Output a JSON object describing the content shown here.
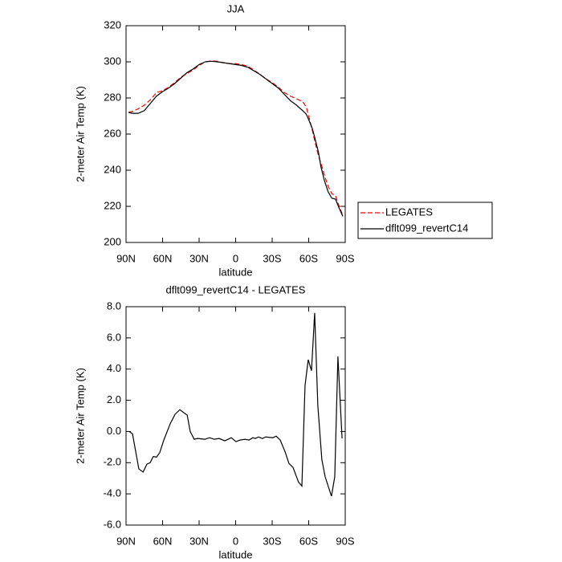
{
  "chart_data": [
    {
      "type": "line",
      "title": "JJA",
      "xlabel": "latitude",
      "ylabel": "2-meter Air Temp (K)",
      "x": [
        88,
        85,
        80,
        75,
        70,
        65,
        60,
        55,
        50,
        45,
        40,
        35,
        30,
        25,
        20,
        15,
        10,
        5,
        0,
        -5,
        -10,
        -15,
        -20,
        -25,
        -30,
        -35,
        -40,
        -45,
        -50,
        -55,
        -58,
        -60,
        -63,
        -65,
        -68,
        -70,
        -73,
        -76,
        -79,
        -82,
        -85,
        -88
      ],
      "series": [
        {
          "name": "LEGATES",
          "color": "#ff0000",
          "style": "dashed",
          "values": [
            272,
            272.5,
            274,
            276,
            279,
            283,
            284,
            286,
            288.5,
            291.5,
            293.5,
            295.5,
            298,
            300,
            300.5,
            300.3,
            299.5,
            299,
            299,
            298.5,
            297.5,
            295.5,
            293,
            290.5,
            288.5,
            286,
            283,
            281,
            279.5,
            278,
            275,
            270,
            262,
            256,
            248,
            244,
            237,
            231,
            227,
            226,
            220,
            215
          ]
        },
        {
          "name": "dflt099_revertC14",
          "color": "#000000",
          "style": "solid",
          "values": [
            272,
            271.5,
            271.5,
            273,
            277,
            281,
            283.5,
            285.5,
            288,
            291,
            294,
            296,
            298.5,
            300,
            300.3,
            300,
            299.5,
            299,
            298.5,
            298,
            297,
            295,
            293,
            290.5,
            288,
            285.5,
            282,
            278.5,
            276,
            273,
            271,
            268,
            263,
            258,
            250,
            242,
            234,
            228,
            224.5,
            224,
            219,
            214.5
          ]
        }
      ],
      "xlim": [
        90,
        -90
      ],
      "xticks": [
        {
          "value": 90,
          "label": "90N"
        },
        {
          "value": 60,
          "label": "60N"
        },
        {
          "value": 30,
          "label": "30N"
        },
        0,
        {
          "value": -30,
          "label": "30S"
        },
        {
          "value": -60,
          "label": "60S"
        },
        {
          "value": -90,
          "label": "90S"
        }
      ],
      "ylim": [
        200,
        320
      ],
      "yticks": [
        200,
        220,
        240,
        260,
        280,
        300,
        320
      ],
      "legend": "right"
    },
    {
      "type": "line",
      "title": "dflt099_revertC14 - LEGATES",
      "xlabel": "latitude",
      "ylabel": "2-meter Air Temp (K)",
      "x": [
        87.4,
        84.7,
        79.5,
        76,
        72.9,
        70.2,
        67.6,
        65,
        62.3,
        59,
        53.7,
        49.8,
        45.8,
        42.5,
        39.8,
        37.3,
        34,
        31.3,
        25.4,
        21.4,
        17.5,
        13.5,
        8.9,
        3.6,
        -0.3,
        -3.6,
        -7.6,
        -10.9,
        -14.2,
        -16.1,
        -18.8,
        -22,
        -24.7,
        -30.6,
        -33.3,
        -36.6,
        -40.6,
        -43.8,
        -47.1,
        -51.7,
        -54.4,
        -57,
        -59.6,
        -62.3,
        -64.9,
        -67.5,
        -70.8,
        -73.5,
        -78.7,
        -81.4,
        -84,
        -87.4
      ],
      "values": [
        0.0,
        -0.15,
        -2.4,
        -2.6,
        -2.1,
        -2.0,
        -1.6,
        -1.65,
        -1.35,
        -0.55,
        0.5,
        1.1,
        1.4,
        1.2,
        1.05,
        0.0,
        -0.5,
        -0.45,
        -0.5,
        -0.4,
        -0.5,
        -0.45,
        -0.6,
        -0.4,
        -0.65,
        -0.55,
        -0.5,
        -0.55,
        -0.4,
        -0.45,
        -0.35,
        -0.45,
        -0.35,
        -0.4,
        -0.3,
        -0.55,
        -1.3,
        -2.05,
        -2.3,
        -3.25,
        -3.5,
        2.95,
        4.6,
        3.9,
        7.6,
        1.65,
        -1.8,
        -2.9,
        -4.15,
        -2.9,
        4.8,
        -0.45
      ],
      "color": "#000000",
      "xlim": [
        90,
        -90
      ],
      "xticks": [
        {
          "value": 90,
          "label": "90N"
        },
        {
          "value": 60,
          "label": "60N"
        },
        {
          "value": 30,
          "label": "30N"
        },
        0,
        {
          "value": -30,
          "label": "30S"
        },
        {
          "value": -60,
          "label": "60S"
        },
        {
          "value": -90,
          "label": "90S"
        }
      ],
      "ylim": [
        -6,
        8
      ],
      "yticks": [
        {
          "value": -6,
          "label": "-6.0"
        },
        {
          "value": -4,
          "label": "-4.0"
        },
        {
          "value": -2,
          "label": "-2.0"
        },
        {
          "value": 0,
          "label": "0.0"
        },
        {
          "value": 2,
          "label": "2.0"
        },
        {
          "value": 4,
          "label": "4.0"
        },
        {
          "value": 6,
          "label": "6.0"
        },
        {
          "value": 8,
          "label": "8.0"
        }
      ]
    }
  ]
}
